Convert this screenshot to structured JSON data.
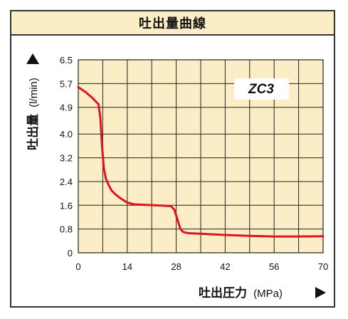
{
  "title": "吐出量曲線",
  "model_label": "ZC3",
  "colors": {
    "plot_bg": "#fbedc6",
    "grid": "#222222",
    "curve": "#e0141e",
    "frame": "#333333"
  },
  "chart_data": {
    "type": "line",
    "x_axis": {
      "label": "吐出圧力",
      "unit": "(MPa)",
      "range": [
        0,
        70
      ],
      "ticks": [
        0,
        14,
        28,
        42,
        56,
        70
      ],
      "tick_labels": [
        "0",
        "14",
        "28",
        "42",
        "56",
        "70"
      ]
    },
    "y_axis": {
      "label": "吐出量",
      "unit": "(l/min)",
      "range": [
        0,
        6.5
      ],
      "ticks": [
        0,
        0.8,
        1.6,
        2.4,
        3.2,
        4.0,
        4.9,
        5.7,
        6.5
      ],
      "tick_labels": [
        "0",
        "0.8",
        "1.6",
        "2.4",
        "3.2",
        "4.0",
        "4.9",
        "5.7",
        "6.5"
      ]
    },
    "grid": true,
    "series": [
      {
        "x": [
          0,
          2,
          4,
          5.8,
          6.3,
          6.8,
          7.3,
          7.9,
          8.6,
          9.5,
          10.5,
          12,
          14,
          16,
          20,
          24,
          26.5,
          27.5,
          28.4,
          29.2,
          30,
          31.5,
          35,
          42,
          49,
          56,
          63,
          70
        ],
        "y": [
          5.58,
          5.42,
          5.22,
          5.0,
          4.55,
          3.6,
          2.85,
          2.5,
          2.3,
          2.1,
          1.98,
          1.84,
          1.69,
          1.63,
          1.61,
          1.59,
          1.57,
          1.45,
          1.1,
          0.8,
          0.7,
          0.66,
          0.64,
          0.6,
          0.57,
          0.55,
          0.55,
          0.56
        ]
      }
    ]
  }
}
